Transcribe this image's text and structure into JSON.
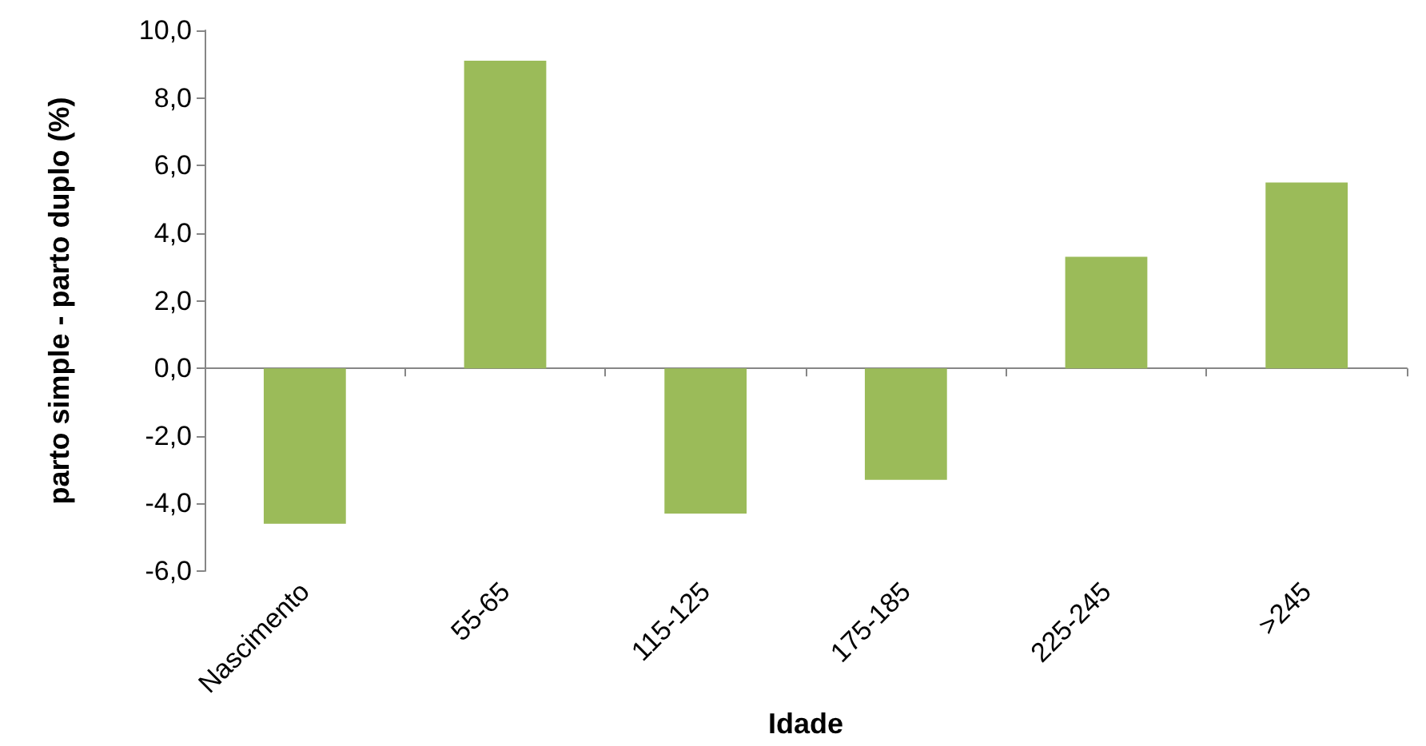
{
  "chart_data": {
    "type": "bar",
    "xlabel": "Idade",
    "ylabel": "parto simple - parto duplo (%)",
    "categories": [
      "Nascimento",
      "55-65",
      "115-125",
      "175-185",
      "225-245",
      ">245"
    ],
    "values": [
      -4.6,
      9.1,
      -4.3,
      -3.3,
      3.3,
      5.5
    ],
    "color": "#9bbb59",
    "ylim": [
      -6,
      10
    ],
    "yticks": [
      {
        "value": -6,
        "label": "-6,0"
      },
      {
        "value": -4,
        "label": "-4,0"
      },
      {
        "value": -2,
        "label": "-2,0"
      },
      {
        "value": 0,
        "label": "0,0"
      },
      {
        "value": 2,
        "label": "2,0"
      },
      {
        "value": 4,
        "label": "4,0"
      },
      {
        "value": 6,
        "label": "6,0"
      },
      {
        "value": 8,
        "label": "8,0"
      },
      {
        "value": 10,
        "label": "10,0"
      }
    ],
    "tick_labels": true
  }
}
